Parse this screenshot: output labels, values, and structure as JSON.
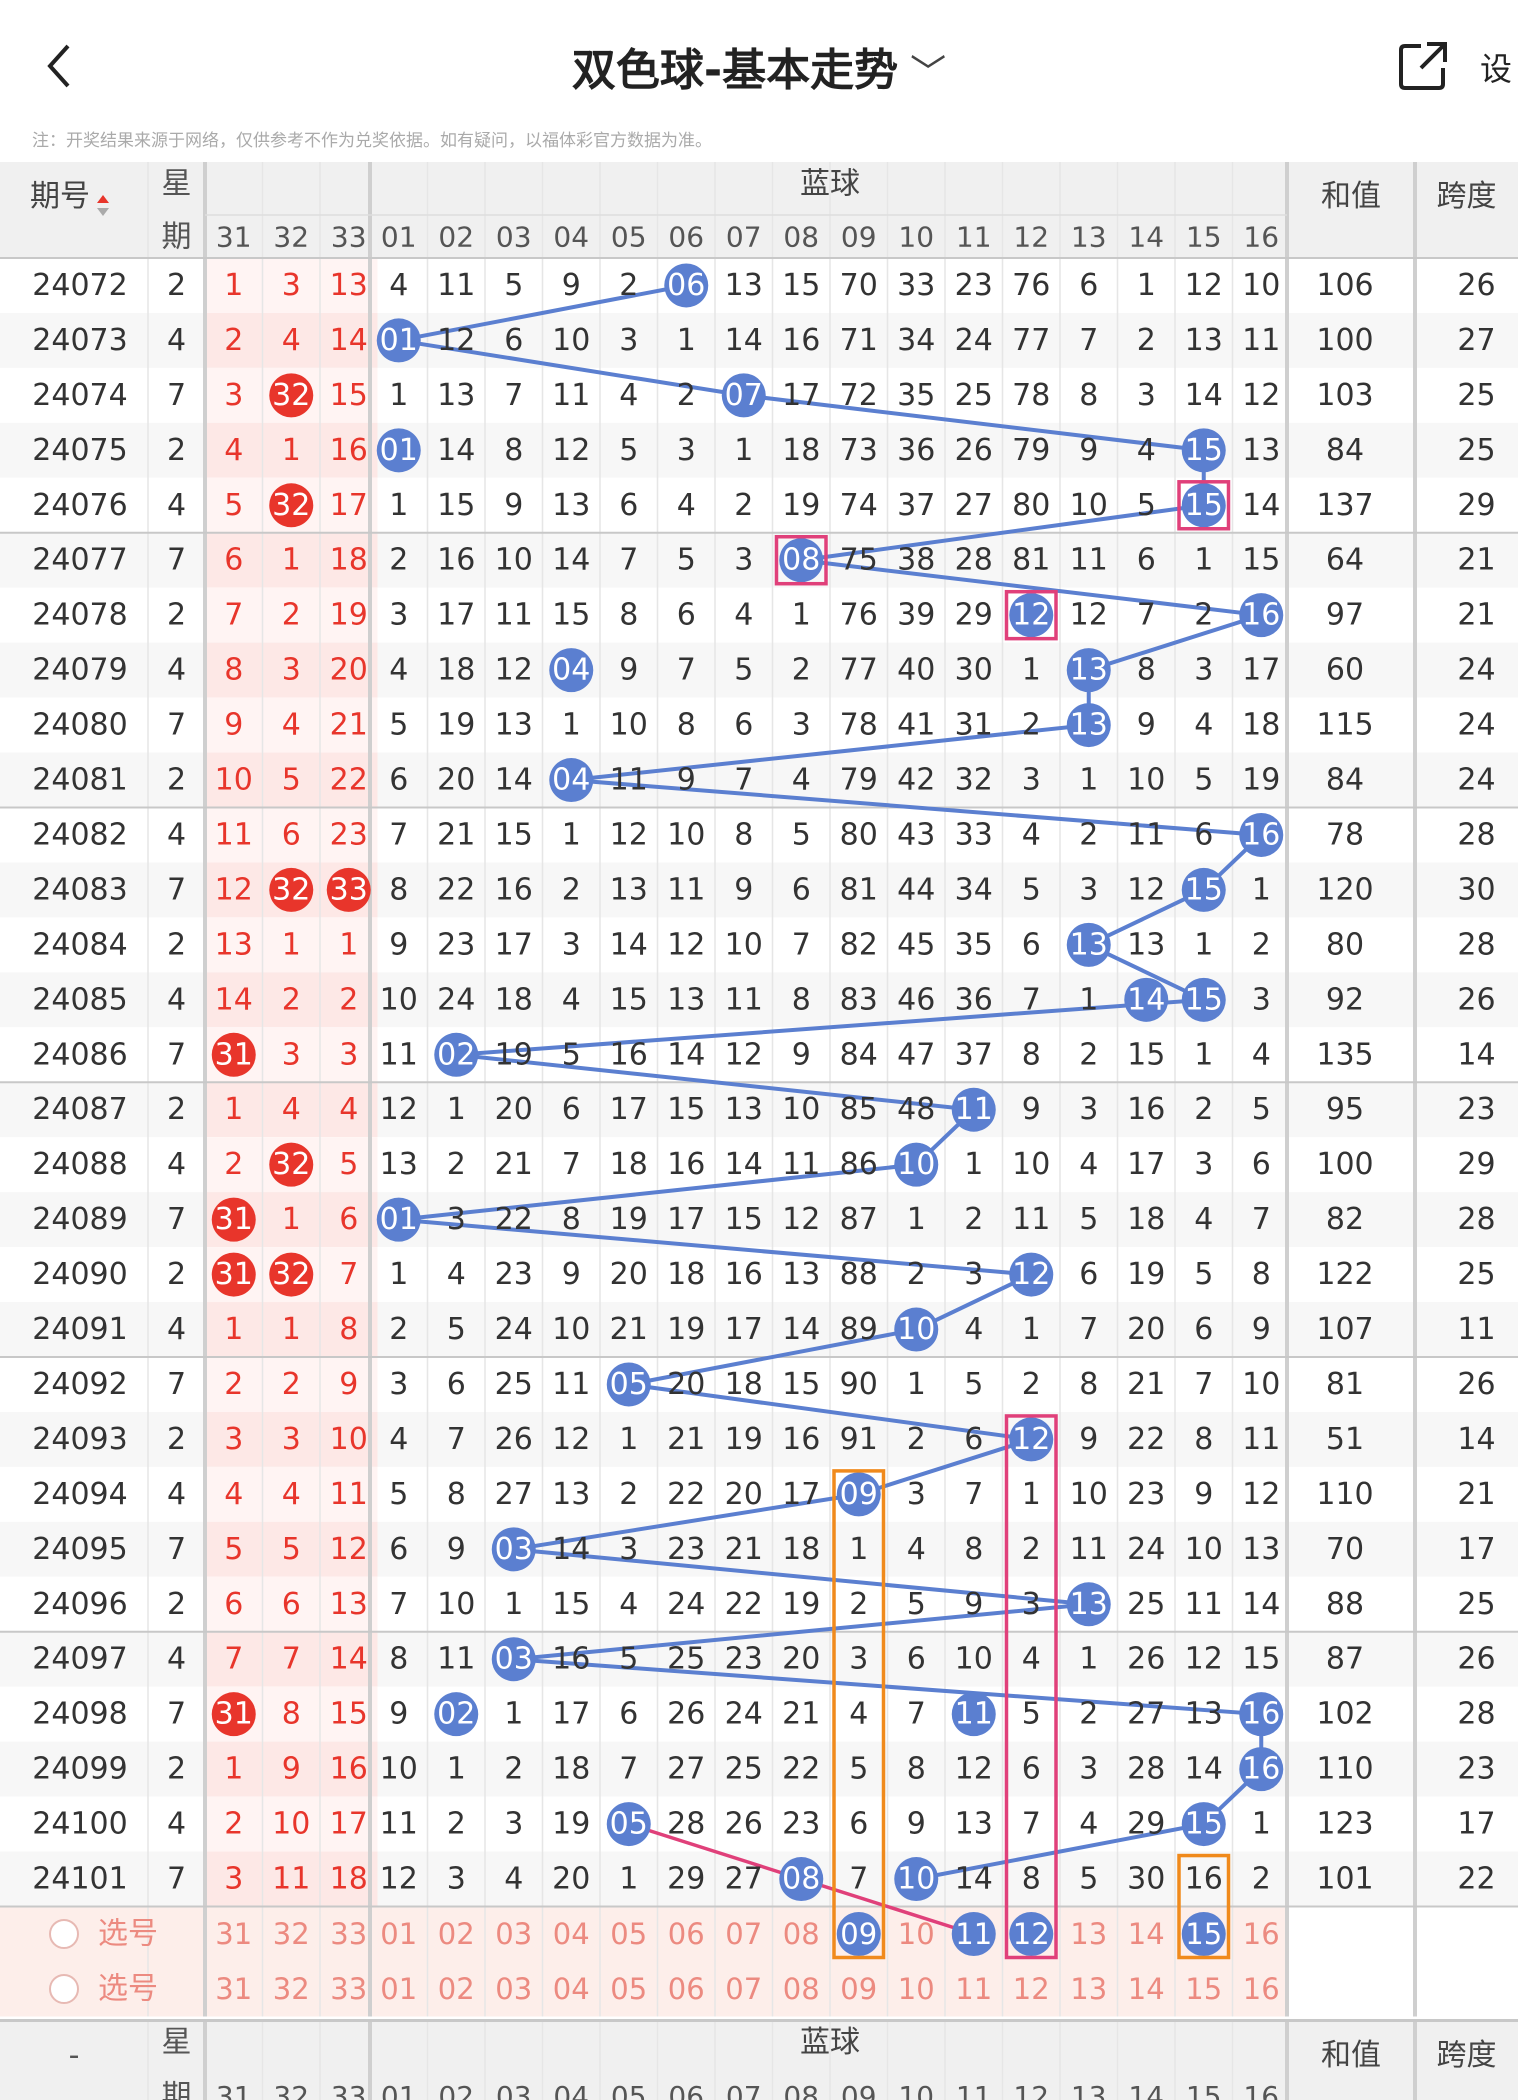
{
  "header": {
    "back_icon": "chevron-left-icon",
    "title": "双色球-基本走势",
    "title_icon": "chevron-down-icon",
    "share_icon": "share-icon",
    "settings_label": "设"
  },
  "note": "注：开奖结果来源于网络，仅供参考不作为兑奖依据。如有疑问，以福体彩官方数据为准。",
  "table": {
    "col_period": "期号",
    "col_week_top": "星",
    "col_week_bottom": "期",
    "blue_group": "蓝球",
    "col_sum": "和值",
    "col_span": "跨度",
    "red_cols": [
      "31",
      "32",
      "33"
    ],
    "blue_cols": [
      "01",
      "02",
      "03",
      "04",
      "05",
      "06",
      "07",
      "08",
      "09",
      "10",
      "11",
      "12",
      "13",
      "14",
      "15",
      "16"
    ],
    "rows": [
      {
        "p": "24072",
        "w": "2",
        "r": [
          "1",
          "3",
          "13"
        ],
        "b": [
          "4",
          "11",
          "5",
          "9",
          "2",
          "06",
          "13",
          "15",
          "70",
          "33",
          "23",
          "76",
          "6",
          "1",
          "12",
          "10"
        ],
        "s": "106",
        "k": "26"
      },
      {
        "p": "24073",
        "w": "4",
        "r": [
          "2",
          "4",
          "14"
        ],
        "b": [
          "01",
          "12",
          "6",
          "10",
          "3",
          "1",
          "14",
          "16",
          "71",
          "34",
          "24",
          "77",
          "7",
          "2",
          "13",
          "11"
        ],
        "s": "100",
        "k": "27"
      },
      {
        "p": "24074",
        "w": "7",
        "r": [
          "3",
          "32",
          "15"
        ],
        "b": [
          "1",
          "13",
          "7",
          "11",
          "4",
          "2",
          "07",
          "17",
          "72",
          "35",
          "25",
          "78",
          "8",
          "3",
          "14",
          "12"
        ],
        "s": "103",
        "k": "25"
      },
      {
        "p": "24075",
        "w": "2",
        "r": [
          "4",
          "1",
          "16"
        ],
        "b": [
          "01",
          "14",
          "8",
          "12",
          "5",
          "3",
          "1",
          "18",
          "73",
          "36",
          "26",
          "79",
          "9",
          "4",
          "15",
          "13"
        ],
        "s": "84",
        "k": "25"
      },
      {
        "p": "24076",
        "w": "4",
        "r": [
          "5",
          "32",
          "17"
        ],
        "b": [
          "1",
          "15",
          "9",
          "13",
          "6",
          "4",
          "2",
          "19",
          "74",
          "37",
          "27",
          "80",
          "10",
          "5",
          "15",
          "14"
        ],
        "s": "137",
        "k": "29"
      },
      {
        "p": "24077",
        "w": "7",
        "r": [
          "6",
          "1",
          "18"
        ],
        "b": [
          "2",
          "16",
          "10",
          "14",
          "7",
          "5",
          "3",
          "08",
          "75",
          "38",
          "28",
          "81",
          "11",
          "6",
          "1",
          "15"
        ],
        "s": "64",
        "k": "21"
      },
      {
        "p": "24078",
        "w": "2",
        "r": [
          "7",
          "2",
          "19"
        ],
        "b": [
          "3",
          "17",
          "11",
          "15",
          "8",
          "6",
          "4",
          "1",
          "76",
          "39",
          "29",
          "12",
          "12",
          "7",
          "2",
          "16"
        ],
        "s": "97",
        "k": "21"
      },
      {
        "p": "24079",
        "w": "4",
        "r": [
          "8",
          "3",
          "20"
        ],
        "b": [
          "4",
          "18",
          "12",
          "04",
          "9",
          "7",
          "5",
          "2",
          "77",
          "40",
          "30",
          "1",
          "13",
          "8",
          "3",
          "17"
        ],
        "s": "60",
        "k": "24"
      },
      {
        "p": "24080",
        "w": "7",
        "r": [
          "9",
          "4",
          "21"
        ],
        "b": [
          "5",
          "19",
          "13",
          "1",
          "10",
          "8",
          "6",
          "3",
          "78",
          "41",
          "31",
          "2",
          "13",
          "9",
          "4",
          "18"
        ],
        "s": "115",
        "k": "24"
      },
      {
        "p": "24081",
        "w": "2",
        "r": [
          "10",
          "5",
          "22"
        ],
        "b": [
          "6",
          "20",
          "14",
          "04",
          "11",
          "9",
          "7",
          "4",
          "79",
          "42",
          "32",
          "3",
          "1",
          "10",
          "5",
          "19"
        ],
        "s": "84",
        "k": "24"
      },
      {
        "p": "24082",
        "w": "4",
        "r": [
          "11",
          "6",
          "23"
        ],
        "b": [
          "7",
          "21",
          "15",
          "1",
          "12",
          "10",
          "8",
          "5",
          "80",
          "43",
          "33",
          "4",
          "2",
          "11",
          "6",
          "16"
        ],
        "s": "78",
        "k": "28"
      },
      {
        "p": "24083",
        "w": "7",
        "r": [
          "12",
          "32",
          "33"
        ],
        "b": [
          "8",
          "22",
          "16",
          "2",
          "13",
          "11",
          "9",
          "6",
          "81",
          "44",
          "34",
          "5",
          "3",
          "12",
          "15",
          "1"
        ],
        "s": "120",
        "k": "30"
      },
      {
        "p": "24084",
        "w": "2",
        "r": [
          "13",
          "1",
          "1"
        ],
        "b": [
          "9",
          "23",
          "17",
          "3",
          "14",
          "12",
          "10",
          "7",
          "82",
          "45",
          "35",
          "6",
          "13",
          "13",
          "1",
          "2"
        ],
        "s": "80",
        "k": "28"
      },
      {
        "p": "24085",
        "w": "4",
        "r": [
          "14",
          "2",
          "2"
        ],
        "b": [
          "10",
          "24",
          "18",
          "4",
          "15",
          "13",
          "11",
          "8",
          "83",
          "46",
          "36",
          "7",
          "1",
          "14",
          "15",
          "3"
        ],
        "s": "92",
        "k": "26"
      },
      {
        "p": "24086",
        "w": "7",
        "r": [
          "31",
          "3",
          "3"
        ],
        "b": [
          "11",
          "02",
          "19",
          "5",
          "16",
          "14",
          "12",
          "9",
          "84",
          "47",
          "37",
          "8",
          "2",
          "15",
          "1",
          "4"
        ],
        "s": "135",
        "k": "14"
      },
      {
        "p": "24087",
        "w": "2",
        "r": [
          "1",
          "4",
          "4"
        ],
        "b": [
          "12",
          "1",
          "20",
          "6",
          "17",
          "15",
          "13",
          "10",
          "85",
          "48",
          "11",
          "9",
          "3",
          "16",
          "2",
          "5"
        ],
        "s": "95",
        "k": "23"
      },
      {
        "p": "24088",
        "w": "4",
        "r": [
          "2",
          "32",
          "5"
        ],
        "b": [
          "13",
          "2",
          "21",
          "7",
          "18",
          "16",
          "14",
          "11",
          "86",
          "10",
          "1",
          "10",
          "4",
          "17",
          "3",
          "6"
        ],
        "s": "100",
        "k": "29"
      },
      {
        "p": "24089",
        "w": "7",
        "r": [
          "31",
          "1",
          "6"
        ],
        "b": [
          "01",
          "3",
          "22",
          "8",
          "19",
          "17",
          "15",
          "12",
          "87",
          "1",
          "2",
          "11",
          "5",
          "18",
          "4",
          "7"
        ],
        "s": "82",
        "k": "28"
      },
      {
        "p": "24090",
        "w": "2",
        "r": [
          "31",
          "32",
          "7"
        ],
        "b": [
          "1",
          "4",
          "23",
          "9",
          "20",
          "18",
          "16",
          "13",
          "88",
          "2",
          "3",
          "12",
          "6",
          "19",
          "5",
          "8"
        ],
        "s": "122",
        "k": "25"
      },
      {
        "p": "24091",
        "w": "4",
        "r": [
          "1",
          "1",
          "8"
        ],
        "b": [
          "2",
          "5",
          "24",
          "10",
          "21",
          "19",
          "17",
          "14",
          "89",
          "10",
          "4",
          "1",
          "7",
          "20",
          "6",
          "9"
        ],
        "s": "107",
        "k": "11"
      },
      {
        "p": "24092",
        "w": "7",
        "r": [
          "2",
          "2",
          "9"
        ],
        "b": [
          "3",
          "6",
          "25",
          "11",
          "05",
          "20",
          "18",
          "15",
          "90",
          "1",
          "5",
          "2",
          "8",
          "21",
          "7",
          "10"
        ],
        "s": "81",
        "k": "26"
      },
      {
        "p": "24093",
        "w": "2",
        "r": [
          "3",
          "3",
          "10"
        ],
        "b": [
          "4",
          "7",
          "26",
          "12",
          "1",
          "21",
          "19",
          "16",
          "91",
          "2",
          "6",
          "12",
          "9",
          "22",
          "8",
          "11"
        ],
        "s": "51",
        "k": "14"
      },
      {
        "p": "24094",
        "w": "4",
        "r": [
          "4",
          "4",
          "11"
        ],
        "b": [
          "5",
          "8",
          "27",
          "13",
          "2",
          "22",
          "20",
          "17",
          "09",
          "3",
          "7",
          "1",
          "10",
          "23",
          "9",
          "12"
        ],
        "s": "110",
        "k": "21"
      },
      {
        "p": "24095",
        "w": "7",
        "r": [
          "5",
          "5",
          "12"
        ],
        "b": [
          "6",
          "9",
          "03",
          "14",
          "3",
          "23",
          "21",
          "18",
          "1",
          "4",
          "8",
          "2",
          "11",
          "24",
          "10",
          "13"
        ],
        "s": "70",
        "k": "17"
      },
      {
        "p": "24096",
        "w": "2",
        "r": [
          "6",
          "6",
          "13"
        ],
        "b": [
          "7",
          "10",
          "1",
          "15",
          "4",
          "24",
          "22",
          "19",
          "2",
          "5",
          "9",
          "3",
          "13",
          "25",
          "11",
          "14"
        ],
        "s": "88",
        "k": "25"
      },
      {
        "p": "24097",
        "w": "4",
        "r": [
          "7",
          "7",
          "14"
        ],
        "b": [
          "8",
          "11",
          "03",
          "16",
          "5",
          "25",
          "23",
          "20",
          "3",
          "6",
          "10",
          "4",
          "1",
          "26",
          "12",
          "15"
        ],
        "s": "87",
        "k": "26"
      },
      {
        "p": "24098",
        "w": "7",
        "r": [
          "31",
          "8",
          "15"
        ],
        "b": [
          "9",
          "02",
          "1",
          "17",
          "6",
          "26",
          "24",
          "21",
          "4",
          "7",
          "11",
          "5",
          "2",
          "27",
          "13",
          "16"
        ],
        "s": "102",
        "k": "28"
      },
      {
        "p": "24099",
        "w": "2",
        "r": [
          "1",
          "9",
          "16"
        ],
        "b": [
          "10",
          "1",
          "2",
          "18",
          "7",
          "27",
          "25",
          "22",
          "5",
          "8",
          "12",
          "6",
          "3",
          "28",
          "14",
          "16"
        ],
        "s": "110",
        "k": "23"
      },
      {
        "p": "24100",
        "w": "4",
        "r": [
          "2",
          "10",
          "17"
        ],
        "b": [
          "11",
          "2",
          "3",
          "19",
          "05",
          "28",
          "26",
          "23",
          "6",
          "9",
          "13",
          "7",
          "4",
          "29",
          "15",
          "1"
        ],
        "s": "123",
        "k": "17"
      },
      {
        "p": "24101",
        "w": "7",
        "r": [
          "3",
          "11",
          "18"
        ],
        "b": [
          "12",
          "3",
          "4",
          "20",
          "1",
          "29",
          "27",
          "08",
          "7",
          "10",
          "14",
          "8",
          "5",
          "30",
          "16",
          "2"
        ],
        "s": "101",
        "k": "22"
      }
    ],
    "pick_label": "选号",
    "pick_red": [
      "31",
      "32",
      "33"
    ],
    "pick_blue": [
      "01",
      "02",
      "03",
      "04",
      "05",
      "06",
      "07",
      "08",
      "09",
      "10",
      "11",
      "12",
      "13",
      "14",
      "15",
      "16"
    ],
    "pick_selected_row1": [
      "09",
      "11",
      "12",
      "15"
    ],
    "bottom_period": "-"
  },
  "colors": {
    "red": "#e8352b",
    "blue_ball": "#5b7fd0",
    "pink_box": "#e0407a",
    "orange_box": "#f08a1c",
    "header_bg": "#f0f0f0",
    "pick_bg": "#fdeeea"
  }
}
